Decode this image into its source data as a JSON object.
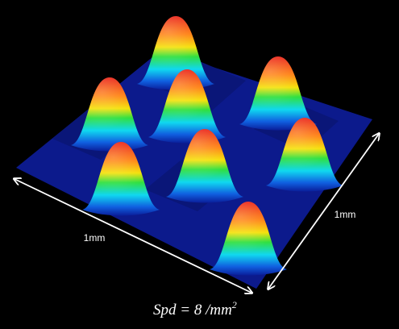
{
  "labels": {
    "front_edge": "1mm",
    "side_edge": "1mm"
  },
  "formula": {
    "main": "Spd = 8 /mm",
    "superscript": "2"
  }
}
